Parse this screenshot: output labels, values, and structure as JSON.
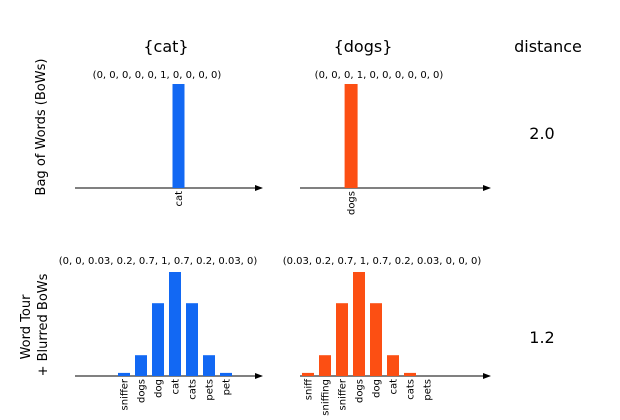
{
  "columns": {
    "left": "{cat}",
    "right": "{dogs}",
    "distance": "distance"
  },
  "rows": {
    "bow": {
      "label": "Bag of Words (BoWs)",
      "distance": "2.0"
    },
    "blur": {
      "label_line1": "Word Tour",
      "label_line2": "+ Blurred BoWs",
      "distance": "1.2"
    }
  },
  "chart_data": [
    {
      "type": "bar",
      "panel": "bow-cat",
      "color": "#1268f3",
      "values": [
        0,
        0,
        0,
        0,
        0,
        1,
        0,
        0,
        0,
        0
      ],
      "vector_label": "(0,  0,  0,  0,  0,  1,  0,  0,  0,  0)",
      "tick_labels": [
        {
          "index": 5,
          "text": "cat"
        }
      ]
    },
    {
      "type": "bar",
      "panel": "bow-dogs",
      "color": "#fc4f13",
      "values": [
        0,
        0,
        0,
        1,
        0,
        0,
        0,
        0,
        0,
        0
      ],
      "vector_label": "(0,  0,  0,  1,  0,  0,  0,  0,  0,  0)",
      "tick_labels": [
        {
          "index": 3,
          "text": "dogs"
        }
      ]
    },
    {
      "type": "bar",
      "panel": "blur-cat",
      "color": "#1268f3",
      "values": [
        0,
        0,
        0.03,
        0.2,
        0.7,
        1,
        0.7,
        0.2,
        0.03,
        0
      ],
      "vector_label": "(0, 0, 0.03, 0.2, 0.7, 1, 0.7, 0.2, 0.03, 0)",
      "tick_labels": [
        {
          "index": 2,
          "text": "sniffer"
        },
        {
          "index": 3,
          "text": "dogs"
        },
        {
          "index": 4,
          "text": "dog"
        },
        {
          "index": 5,
          "text": "cat"
        },
        {
          "index": 6,
          "text": "cats"
        },
        {
          "index": 7,
          "text": "pets"
        },
        {
          "index": 8,
          "text": "pet"
        }
      ]
    },
    {
      "type": "bar",
      "panel": "blur-dogs",
      "color": "#fc4f13",
      "values": [
        0.03,
        0.2,
        0.7,
        1,
        0.7,
        0.2,
        0.03,
        0,
        0,
        0
      ],
      "vector_label": "(0.03, 0.2, 0.7, 1, 0.7, 0.2, 0.03, 0, 0, 0)",
      "tick_labels": [
        {
          "index": 0,
          "text": "sniff"
        },
        {
          "index": 1,
          "text": "sniffing"
        },
        {
          "index": 2,
          "text": "sniffer"
        },
        {
          "index": 3,
          "text": "dogs"
        },
        {
          "index": 4,
          "text": "dog"
        },
        {
          "index": 5,
          "text": "cat"
        },
        {
          "index": 6,
          "text": "cats"
        },
        {
          "index": 7,
          "text": "pets"
        }
      ]
    }
  ]
}
